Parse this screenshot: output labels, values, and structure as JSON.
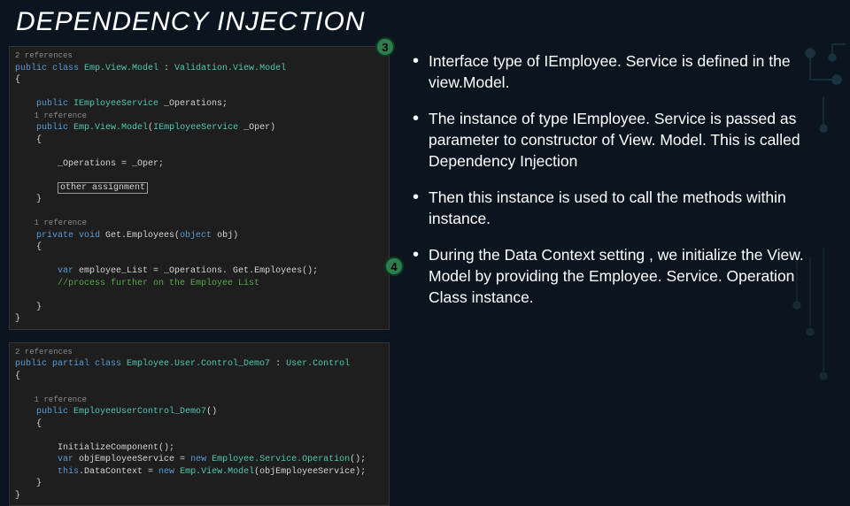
{
  "title": "DEPENDENCY INJECTION",
  "badges": {
    "b3": "3",
    "b4": "4"
  },
  "code1_lines": [
    {
      "cls": "ref",
      "t": "2 references"
    },
    {
      "t": "",
      "segs": [
        {
          "c": "kw",
          "t": "public class "
        },
        {
          "c": "cls",
          "t": "Emp.View.Model"
        },
        {
          "t": " : "
        },
        {
          "c": "cls",
          "t": "Validation.View.Model"
        }
      ]
    },
    {
      "t": "{"
    },
    {
      "t": ""
    },
    {
      "t": "    ",
      "segs": [
        {
          "c": "kw",
          "t": "public "
        },
        {
          "c": "cls",
          "t": "IEmployeeService"
        },
        {
          "t": " _Operations;"
        }
      ]
    },
    {
      "cls": "ref",
      "t": "    1 reference"
    },
    {
      "t": "    ",
      "segs": [
        {
          "c": "kw",
          "t": "public "
        },
        {
          "c": "cls",
          "t": "Emp.View.Model"
        },
        {
          "t": "("
        },
        {
          "c": "cls",
          "t": "IEmployeeService"
        },
        {
          "t": " _Oper)"
        }
      ]
    },
    {
      "t": "    {"
    },
    {
      "t": ""
    },
    {
      "t": "        _Operations = _Oper;"
    },
    {
      "t": ""
    },
    {
      "t": "        ",
      "segs": [
        {
          "c": "boxed",
          "t": "other assignment"
        }
      ]
    },
    {
      "t": "    }"
    },
    {
      "t": ""
    },
    {
      "cls": "ref",
      "t": "    1 reference"
    },
    {
      "t": "    ",
      "segs": [
        {
          "c": "kw",
          "t": "private void "
        },
        {
          "t": "Get.Employees("
        },
        {
          "c": "kw",
          "t": "object"
        },
        {
          "t": " obj)"
        }
      ]
    },
    {
      "t": "    {"
    },
    {
      "t": ""
    },
    {
      "t": "        ",
      "segs": [
        {
          "c": "kw",
          "t": "var "
        },
        {
          "t": "employee_List = _Operations. Get.Employees();"
        }
      ]
    },
    {
      "t": "        ",
      "segs": [
        {
          "c": "cmt",
          "t": "//process further on the Employee List"
        }
      ]
    },
    {
      "t": ""
    },
    {
      "t": "    }"
    },
    {
      "t": "}"
    }
  ],
  "code2_lines": [
    {
      "cls": "ref",
      "t": "2 references"
    },
    {
      "t": "",
      "segs": [
        {
          "c": "kw",
          "t": "public partial class "
        },
        {
          "c": "cls",
          "t": "Employee.User.Control_Demo7"
        },
        {
          "t": " : "
        },
        {
          "c": "cls",
          "t": "User.Control"
        }
      ]
    },
    {
      "t": "{"
    },
    {
      "t": ""
    },
    {
      "cls": "ref",
      "t": "    1 reference"
    },
    {
      "t": "    ",
      "segs": [
        {
          "c": "kw",
          "t": "public "
        },
        {
          "c": "cls",
          "t": "EmployeeUserControl_Demo7"
        },
        {
          "t": "()"
        }
      ]
    },
    {
      "t": "    {"
    },
    {
      "t": ""
    },
    {
      "t": "        InitializeComponent();"
    },
    {
      "t": "        ",
      "segs": [
        {
          "c": "kw",
          "t": "var "
        },
        {
          "t": "objEmployeeService = "
        },
        {
          "c": "kw",
          "t": "new "
        },
        {
          "c": "cls",
          "t": "Employee.Service.Operation"
        },
        {
          "t": "();"
        }
      ]
    },
    {
      "t": "        ",
      "segs": [
        {
          "c": "kw",
          "t": "this"
        },
        {
          "t": ".DataContext = "
        },
        {
          "c": "kw",
          "t": "new "
        },
        {
          "c": "cls",
          "t": "Emp.View.Model"
        },
        {
          "t": "(objEmployeeService);"
        }
      ]
    },
    {
      "t": "    }"
    },
    {
      "t": "}"
    }
  ],
  "bullets": [
    "Interface type of IEmployee. Service is defined in the view.Model.",
    "The instance of type IEmployee. Service is passed as parameter to constructor of View. Model. This is called Dependency Injection",
    "Then this instance is used to call the methods within instance.",
    "During the Data Context setting , we initialize the View. Model by providing the Employee. Service. Operation Class instance."
  ],
  "colors": {
    "background": "#0a1520",
    "code_bg": "#1e1e1e",
    "keyword": "#569cd6",
    "classname": "#4ec9b0",
    "comment": "#57a64a",
    "badge_bg": "#2e7d4f",
    "circuit": "#3a6a7a"
  }
}
